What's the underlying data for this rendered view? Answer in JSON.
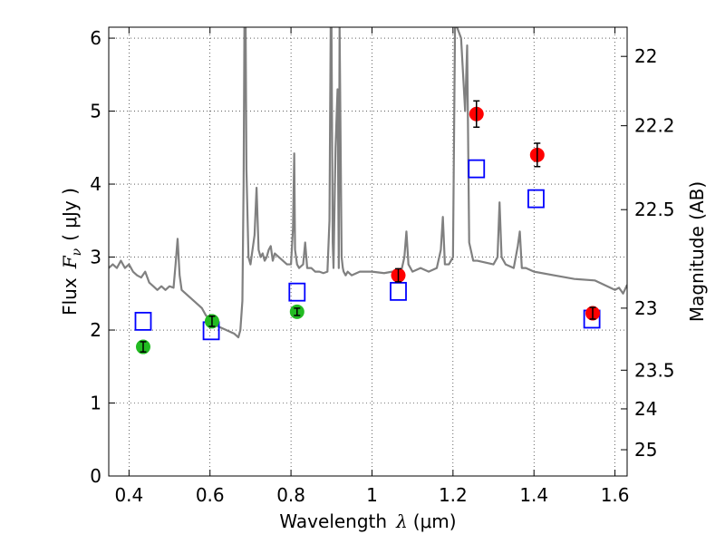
{
  "chart_data": {
    "type": "scatter",
    "xlabel_prefix": "Wavelength",
    "xlabel_symbol": "λ",
    "xlabel_units": "(μm)",
    "ylabel_prefix": "Flux",
    "ylabel_symbol": "F",
    "ylabel_subscript": "ν",
    "ylabel_units": "( μJy )",
    "y2label": "Magnitude (AB)",
    "xlim": [
      0.35,
      1.63
    ],
    "ylim": [
      0,
      6.15
    ],
    "grid": true,
    "xticks": [
      0.4,
      0.6,
      0.8,
      1.0,
      1.2,
      1.4,
      1.6
    ],
    "xtick_labels": [
      "0.4",
      "0.6",
      "0.8",
      "1",
      "1.2",
      "1.4",
      "1.6"
    ],
    "yticks": [
      0,
      1,
      2,
      3,
      4,
      5,
      6
    ],
    "ytick_labels": [
      "0",
      "1",
      "2",
      "3",
      "4",
      "5",
      "6"
    ],
    "y2ticks": [
      {
        "label": "22",
        "flux": 5.75
      },
      {
        "label": "22.2",
        "flux": 4.8
      },
      {
        "label": "22.5",
        "flux": 3.65
      },
      {
        "label": "23",
        "flux": 2.3
      },
      {
        "label": "23.5",
        "flux": 1.45
      },
      {
        "label": "24",
        "flux": 0.92
      },
      {
        "label": "25",
        "flux": 0.36
      }
    ],
    "colors": {
      "spectrum": "#808080",
      "model": "#0000ff",
      "optical": "#22bb22",
      "nir": "#ff0000",
      "errorbar": "#000000"
    },
    "series": [
      {
        "name": "model spectrum",
        "kind": "line",
        "x": [
          0.35,
          0.36,
          0.37,
          0.38,
          0.39,
          0.4,
          0.41,
          0.42,
          0.43,
          0.44,
          0.45,
          0.46,
          0.47,
          0.48,
          0.49,
          0.5,
          0.51,
          0.515,
          0.52,
          0.525,
          0.53,
          0.54,
          0.55,
          0.56,
          0.57,
          0.58,
          0.59,
          0.6,
          0.62,
          0.64,
          0.66,
          0.67,
          0.675,
          0.68,
          0.683,
          0.685,
          0.688,
          0.69,
          0.695,
          0.7,
          0.705,
          0.71,
          0.715,
          0.72,
          0.725,
          0.73,
          0.735,
          0.74,
          0.745,
          0.75,
          0.755,
          0.76,
          0.77,
          0.78,
          0.79,
          0.8,
          0.805,
          0.808,
          0.81,
          0.815,
          0.82,
          0.83,
          0.835,
          0.84,
          0.85,
          0.86,
          0.87,
          0.88,
          0.89,
          0.895,
          0.898,
          0.9,
          0.903,
          0.905,
          0.91,
          0.915,
          0.918,
          0.92,
          0.925,
          0.928,
          0.93,
          0.935,
          0.94,
          0.95,
          0.97,
          1.0,
          1.03,
          1.05,
          1.07,
          1.08,
          1.085,
          1.09,
          1.1,
          1.12,
          1.14,
          1.16,
          1.17,
          1.175,
          1.18,
          1.19,
          1.2,
          1.205,
          1.21,
          1.22,
          1.225,
          1.23,
          1.235,
          1.24,
          1.25,
          1.26,
          1.3,
          1.31,
          1.315,
          1.32,
          1.33,
          1.35,
          1.36,
          1.365,
          1.37,
          1.38,
          1.4,
          1.45,
          1.5,
          1.55,
          1.6,
          1.61,
          1.62,
          1.63
        ],
        "y": [
          2.85,
          2.9,
          2.85,
          2.95,
          2.85,
          2.9,
          2.8,
          2.75,
          2.72,
          2.8,
          2.65,
          2.6,
          2.55,
          2.6,
          2.55,
          2.6,
          2.58,
          2.9,
          3.25,
          2.75,
          2.55,
          2.5,
          2.45,
          2.4,
          2.35,
          2.3,
          2.2,
          2.15,
          2.05,
          2.0,
          1.95,
          1.9,
          2.0,
          2.4,
          4.0,
          6.15,
          6.15,
          4.2,
          3.0,
          2.9,
          3.1,
          3.3,
          3.95,
          3.1,
          3.0,
          3.05,
          2.95,
          3.0,
          3.1,
          3.15,
          2.95,
          3.05,
          3.0,
          2.95,
          2.9,
          2.9,
          3.4,
          4.42,
          3.1,
          2.9,
          2.85,
          2.9,
          3.2,
          2.85,
          2.85,
          2.8,
          2.8,
          2.78,
          2.8,
          3.5,
          6.15,
          6.15,
          3.2,
          2.85,
          4.5,
          5.3,
          2.85,
          6.15,
          3.0,
          2.85,
          2.8,
          2.75,
          2.8,
          2.75,
          2.8,
          2.8,
          2.78,
          2.8,
          2.75,
          3.0,
          3.35,
          2.9,
          2.8,
          2.85,
          2.8,
          2.85,
          3.1,
          3.55,
          2.9,
          2.9,
          3.0,
          6.15,
          6.15,
          6.0,
          5.5,
          5.0,
          5.9,
          3.2,
          2.95,
          2.95,
          2.9,
          3.0,
          3.75,
          3.0,
          2.9,
          2.85,
          3.15,
          3.35,
          2.85,
          2.85,
          2.8,
          2.75,
          2.7,
          2.68,
          2.55,
          2.58,
          2.5,
          2.62
        ]
      },
      {
        "name": "model photometry",
        "kind": "open-square",
        "x": [
          0.435,
          0.603,
          0.815,
          1.065,
          1.258,
          1.405,
          1.543
        ],
        "y": [
          2.12,
          1.99,
          2.52,
          2.53,
          4.21,
          3.8,
          2.15
        ]
      },
      {
        "name": "optical photometry",
        "kind": "filled-circle",
        "x": [
          0.435,
          0.605,
          0.815
        ],
        "y": [
          1.77,
          2.12,
          2.25
        ],
        "yerr": [
          0.07,
          0.07,
          0.05
        ]
      },
      {
        "name": "near-IR photometry",
        "kind": "filled-circle",
        "x": [
          1.065,
          1.258,
          1.408,
          1.545
        ],
        "y": [
          2.75,
          4.96,
          4.4,
          2.23
        ],
        "yerr": [
          0.09,
          0.18,
          0.16,
          0.08
        ]
      }
    ]
  }
}
